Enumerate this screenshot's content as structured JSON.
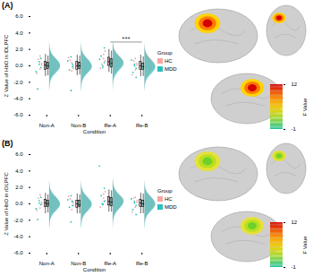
{
  "chart_data": [
    {
      "type": "raincloud",
      "title": "(A)",
      "xlabel": "Condition",
      "ylabel": "Z Value of HbO in lDLPFC",
      "categories": [
        "Non-A",
        "Non-B",
        "Re-A",
        "Re-B"
      ],
      "ylim": [
        -6,
        6
      ],
      "yticks": [
        {
          "value": -6,
          "label": "-6.0"
        },
        {
          "value": -4,
          "label": "-4.0"
        },
        {
          "value": -2,
          "label": "-2.0"
        },
        {
          "value": 0,
          "label": "0.0"
        },
        {
          "value": 2,
          "label": "2.0"
        },
        {
          "value": 4,
          "label": "4.0"
        },
        {
          "value": 6,
          "label": "6.0"
        }
      ],
      "legend": "right",
      "legend_title": "Group",
      "density_y": [
        -3,
        -2.5,
        -2,
        -1.5,
        -1,
        -0.5,
        0,
        0.5,
        1,
        1.5,
        2,
        2.5,
        3
      ],
      "series": [
        {
          "name": "HC",
          "color": "#f4a7a0",
          "box": [
            {
              "low": -1.3,
              "q1": -0.5,
              "median": 0.1,
              "q3": 0.5,
              "high": 1.4
            },
            {
              "low": -1.2,
              "q1": -0.5,
              "median": 0.0,
              "q3": 0.5,
              "high": 1.3
            },
            {
              "low": -0.8,
              "q1": 0.0,
              "median": 0.5,
              "q3": 1.0,
              "high": 2.0
            },
            {
              "low": -1.3,
              "q1": -0.5,
              "median": 0.0,
              "q3": 0.5,
              "high": 1.3
            }
          ],
          "points": [
            [
              0.3,
              -0.4,
              0.8,
              -0.9,
              0.1,
              1.2
            ],
            [
              0.0,
              -0.6,
              0.7,
              1.0,
              -0.3,
              0.4
            ],
            [
              0.6,
              1.4,
              0.2,
              -0.3,
              1.8,
              0.9
            ],
            [
              0.1,
              -0.5,
              0.6,
              -1.1,
              0.3,
              0.9
            ]
          ],
          "density": [
            [
              0,
              0.02,
              0.05,
              0.15,
              0.4,
              0.8,
              1,
              0.8,
              0.45,
              0.15,
              0.05,
              0.02,
              0
            ],
            [
              0,
              0.02,
              0.06,
              0.18,
              0.45,
              0.85,
              1,
              0.75,
              0.4,
              0.14,
              0.04,
              0.01,
              0
            ],
            [
              0,
              0.01,
              0.03,
              0.08,
              0.2,
              0.5,
              0.85,
              1,
              0.7,
              0.35,
              0.12,
              0.04,
              0.01
            ],
            [
              0,
              0.02,
              0.06,
              0.16,
              0.42,
              0.82,
              1,
              0.78,
              0.42,
              0.15,
              0.05,
              0.01,
              0
            ]
          ]
        },
        {
          "name": "MDD",
          "color": "#2bbfbf",
          "box": [
            {
              "low": -1.2,
              "q1": -0.4,
              "median": 0.0,
              "q3": 0.4,
              "high": 1.2
            },
            {
              "low": -1.1,
              "q1": -0.4,
              "median": 0.0,
              "q3": 0.4,
              "high": 1.2
            },
            {
              "low": -1.0,
              "q1": -0.2,
              "median": 0.3,
              "q3": 0.8,
              "high": 1.8
            },
            {
              "low": -1.3,
              "q1": -0.5,
              "median": -0.1,
              "q3": 0.3,
              "high": 1.1
            }
          ],
          "points": [
            [
              -0.2,
              0.5,
              -2.8,
              -0.7,
              0.9,
              0.2
            ],
            [
              0.2,
              -3.0,
              -0.5,
              0.6,
              -0.1,
              1.1
            ],
            [
              0.4,
              -0.2,
              1.2,
              0.8,
              2.2,
              0.0
            ],
            [
              -0.3,
              0.2,
              -0.8,
              0.7,
              -1.4,
              0.0
            ]
          ],
          "density": [
            [
              0.02,
              0.04,
              0.08,
              0.2,
              0.5,
              0.9,
              1,
              0.85,
              0.45,
              0.18,
              0.06,
              0.02,
              0
            ],
            [
              0.03,
              0.05,
              0.09,
              0.22,
              0.52,
              0.92,
              1,
              0.8,
              0.42,
              0.16,
              0.05,
              0.02,
              0
            ],
            [
              0.01,
              0.02,
              0.05,
              0.12,
              0.3,
              0.65,
              0.95,
              1,
              0.65,
              0.3,
              0.1,
              0.03,
              0.01
            ],
            [
              0.02,
              0.04,
              0.1,
              0.25,
              0.6,
              0.95,
              1,
              0.7,
              0.35,
              0.12,
              0.04,
              0.01,
              0
            ]
          ]
        }
      ],
      "annotations": [
        {
          "text": "***",
          "between": [
            "Re-A",
            "Re-B"
          ]
        }
      ],
      "colorbar": {
        "label": "F Value",
        "range": [
          -1,
          12
        ],
        "ticks": [
          -1,
          12
        ]
      }
    },
    {
      "type": "raincloud",
      "title": "(B)",
      "xlabel": "Condition",
      "ylabel": "Z Value of HbO in rDLPFC",
      "categories": [
        "Non-A",
        "Non-B",
        "Re-A",
        "Re-B"
      ],
      "ylim": [
        -6,
        6
      ],
      "yticks": [
        {
          "value": -6,
          "label": "-6.0"
        },
        {
          "value": -4,
          "label": "-4.0"
        },
        {
          "value": -2,
          "label": "-2.0"
        },
        {
          "value": 0,
          "label": "0.0"
        },
        {
          "value": 2,
          "label": "2.0"
        },
        {
          "value": 4,
          "label": "4.0"
        },
        {
          "value": 6,
          "label": "6.0"
        }
      ],
      "legend": "right",
      "legend_title": "Group",
      "density_y": [
        -3,
        -2.5,
        -2,
        -1.5,
        -1,
        -0.5,
        0,
        0.5,
        1,
        1.5,
        2,
        2.5,
        3
      ],
      "series": [
        {
          "name": "HC",
          "color": "#f4a7a0",
          "box": [
            {
              "low": -1.2,
              "q1": -0.4,
              "median": 0.1,
              "q3": 0.5,
              "high": 1.3
            },
            {
              "low": -1.2,
              "q1": -0.5,
              "median": 0.0,
              "q3": 0.4,
              "high": 1.2
            },
            {
              "low": -1.0,
              "q1": -0.2,
              "median": 0.3,
              "q3": 0.8,
              "high": 1.7
            },
            {
              "low": -1.2,
              "q1": -0.4,
              "median": 0.1,
              "q3": 0.5,
              "high": 1.3
            }
          ],
          "points": [
            [
              0.2,
              -0.5,
              0.7,
              -0.8,
              0.0,
              1.1
            ],
            [
              0.1,
              -0.7,
              0.6,
              0.9,
              -0.2,
              0.3
            ],
            [
              0.4,
              1.2,
              0.0,
              -0.4,
              1.5,
              0.7
            ],
            [
              0.2,
              -0.4,
              0.7,
              -1.0,
              0.4,
              0.8
            ]
          ],
          "density": [
            [
              0,
              0.02,
              0.05,
              0.16,
              0.42,
              0.82,
              1,
              0.78,
              0.42,
              0.14,
              0.04,
              0.01,
              0
            ],
            [
              0,
              0.02,
              0.06,
              0.18,
              0.46,
              0.86,
              1,
              0.74,
              0.38,
              0.13,
              0.04,
              0.01,
              0
            ],
            [
              0,
              0.01,
              0.04,
              0.1,
              0.28,
              0.62,
              0.92,
              1,
              0.62,
              0.28,
              0.1,
              0.03,
              0.01
            ],
            [
              0,
              0.02,
              0.05,
              0.15,
              0.4,
              0.8,
              1,
              0.8,
              0.44,
              0.15,
              0.05,
              0.01,
              0
            ]
          ]
        },
        {
          "name": "MDD",
          "color": "#2bbfbf",
          "box": [
            {
              "low": -1.1,
              "q1": -0.4,
              "median": 0.0,
              "q3": 0.4,
              "high": 1.1
            },
            {
              "low": -1.2,
              "q1": -0.4,
              "median": -0.1,
              "q3": 0.4,
              "high": 1.1
            },
            {
              "low": -1.0,
              "q1": -0.3,
              "median": 0.2,
              "q3": 0.7,
              "high": 1.6
            },
            {
              "low": -1.2,
              "q1": -0.4,
              "median": 0.0,
              "q3": 0.4,
              "high": 1.2
            }
          ],
          "points": [
            [
              -0.1,
              0.4,
              -1.9,
              -0.6,
              0.8,
              0.1
            ],
            [
              0.3,
              -2.2,
              -0.4,
              0.5,
              -0.2,
              1.0
            ],
            [
              0.3,
              -0.1,
              1.0,
              4.6,
              1.9,
              0.0
            ],
            [
              -0.2,
              0.3,
              -0.7,
              0.6,
              -1.3,
              0.1
            ]
          ],
          "density": [
            [
              0.02,
              0.04,
              0.08,
              0.2,
              0.5,
              0.9,
              1,
              0.82,
              0.42,
              0.16,
              0.05,
              0.02,
              0
            ],
            [
              0.02,
              0.05,
              0.09,
              0.22,
              0.52,
              0.9,
              1,
              0.8,
              0.4,
              0.15,
              0.05,
              0.02,
              0
            ],
            [
              0.01,
              0.02,
              0.05,
              0.13,
              0.32,
              0.68,
              0.96,
              1,
              0.62,
              0.28,
              0.1,
              0.04,
              0.02
            ],
            [
              0.02,
              0.04,
              0.08,
              0.2,
              0.5,
              0.9,
              1,
              0.8,
              0.42,
              0.15,
              0.05,
              0.02,
              0
            ]
          ]
        }
      ],
      "colorbar": {
        "label": "F Value",
        "range": [
          -1,
          12
        ],
        "ticks": [
          -1,
          12
        ]
      }
    }
  ]
}
